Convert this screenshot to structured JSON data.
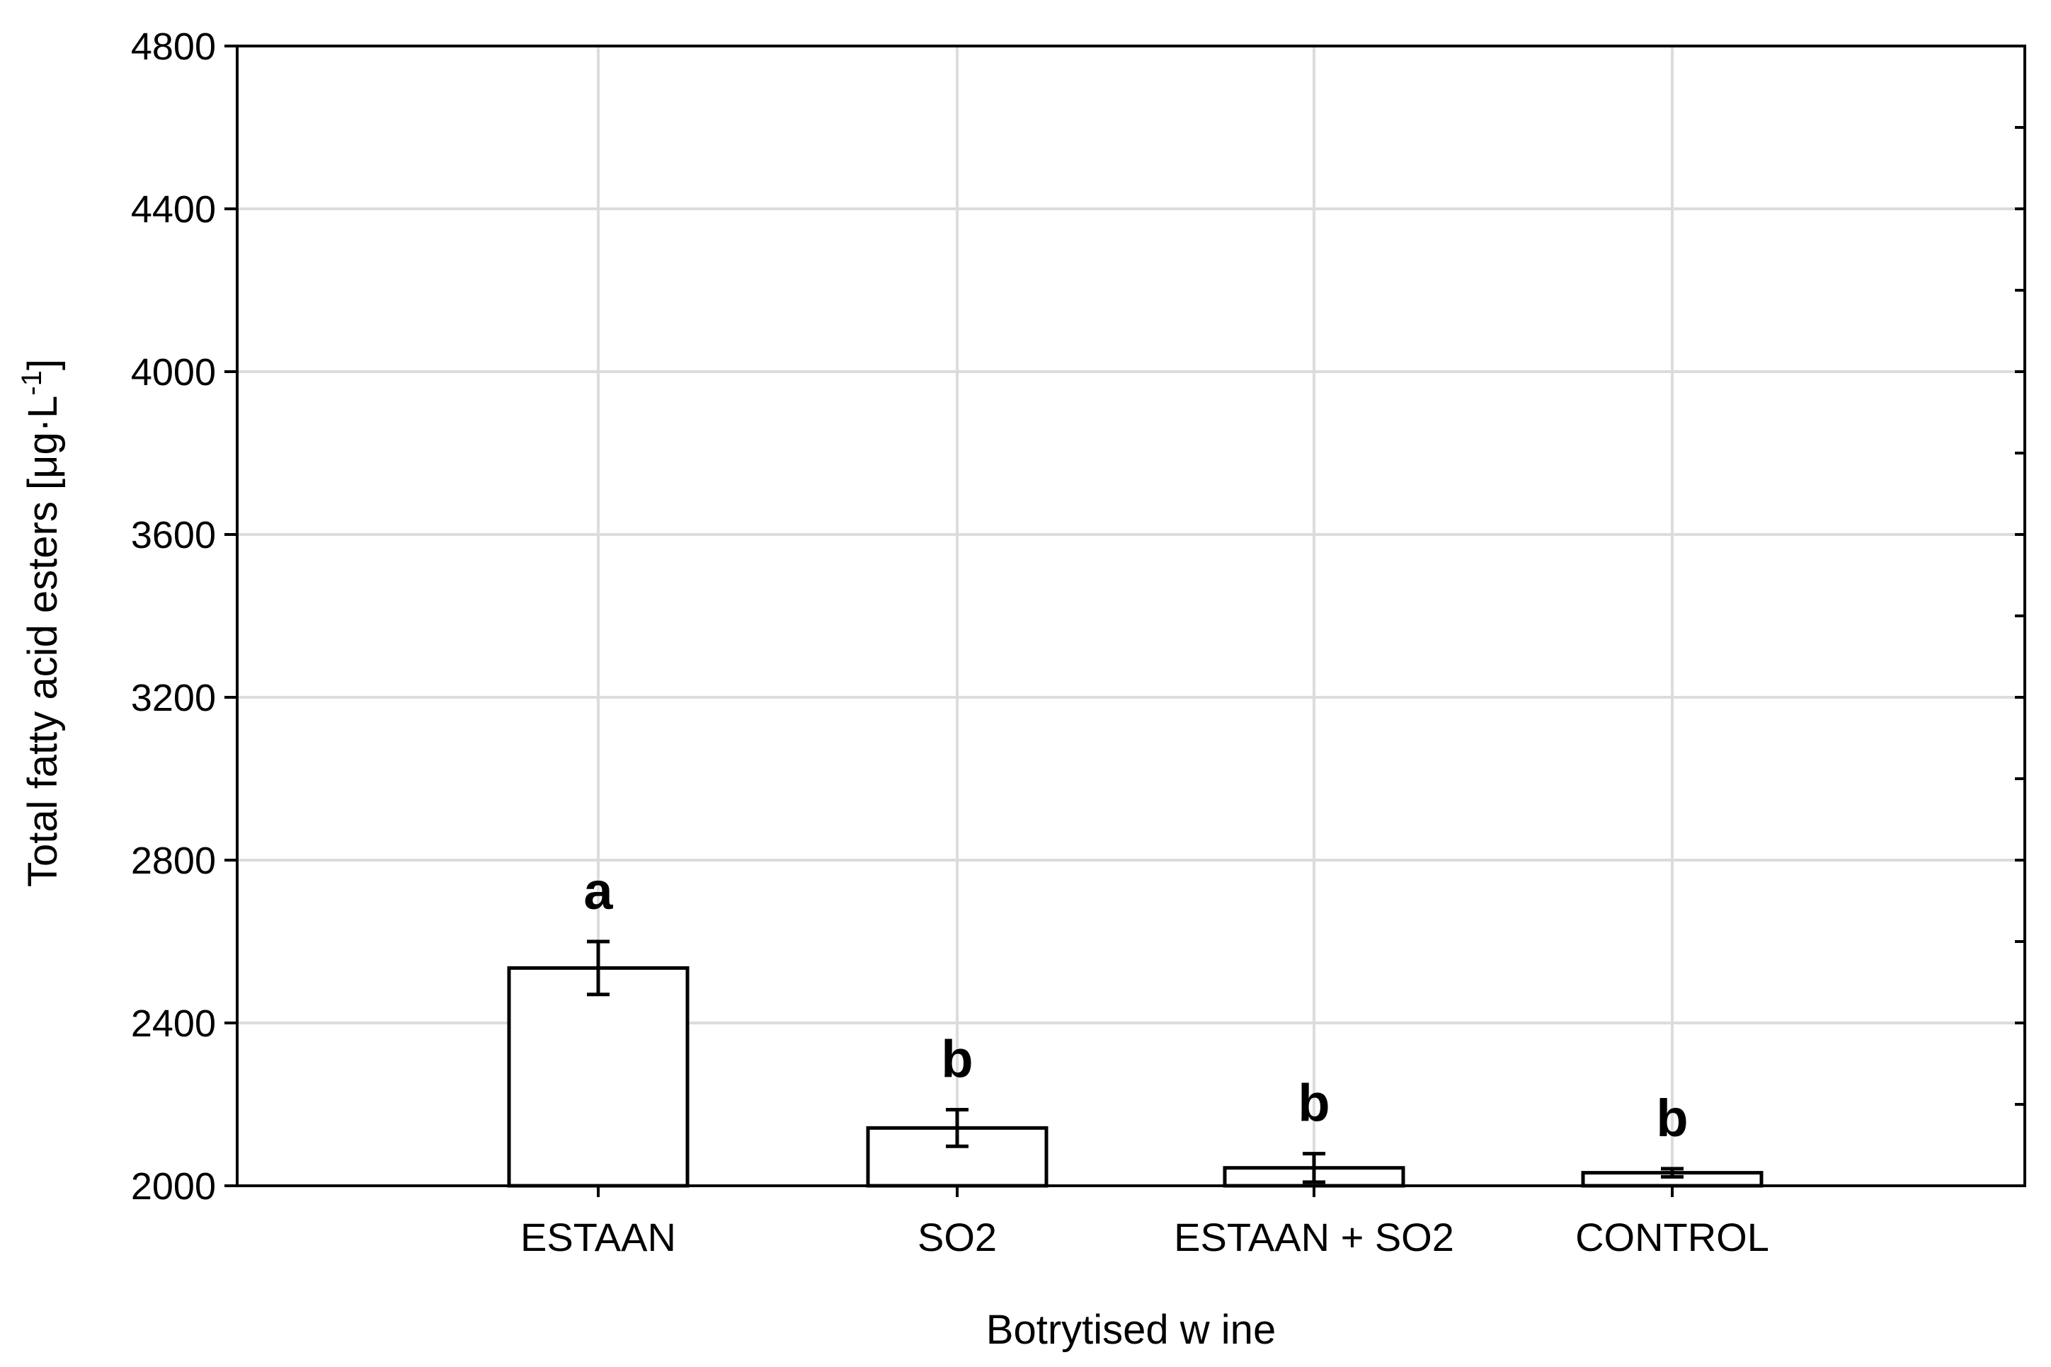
{
  "chart_data": {
    "type": "bar",
    "xlabel": "Botrytised w ine",
    "ylabel": "Total fatty acid esters [μg·L",
    "ylabel_superscript": "-1",
    "ylabel_close": "]",
    "ylim": [
      2000,
      4800
    ],
    "yticks": [
      "2000",
      "2400",
      "2800",
      "3200",
      "3600",
      "4000",
      "4400",
      "4800"
    ],
    "grid": true,
    "categories": [
      "ESTAAN",
      "SO2",
      "ESTAAN + SO2",
      "CONTROL"
    ],
    "values": [
      2535,
      2142,
      2044,
      2032
    ],
    "errors": [
      65,
      45,
      35,
      10
    ],
    "significance_letters": [
      "a",
      "b",
      "b",
      "b"
    ]
  }
}
